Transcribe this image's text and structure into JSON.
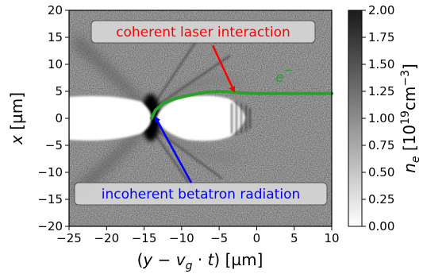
{
  "chart_data": {
    "type": "heatmap",
    "xlabel_parts": [
      "(",
      "y",
      " − ",
      "v",
      "g",
      " · ",
      "t",
      ") [µm]"
    ],
    "ylabel_parts": [
      "x",
      " [µm]"
    ],
    "xlim": [
      -25,
      10
    ],
    "ylim": [
      -20,
      20
    ],
    "x_ticks": [
      -25,
      -20,
      -15,
      -10,
      -5,
      0,
      5,
      10
    ],
    "x_tick_labels": [
      "−25",
      "−20",
      "−15",
      "−10",
      "−5",
      "0",
      "5",
      "10"
    ],
    "y_ticks": [
      -20,
      -15,
      -10,
      -5,
      0,
      5,
      10,
      15,
      20
    ],
    "y_tick_labels": [
      "−20",
      "−15",
      "−10",
      "−5",
      "0",
      "5",
      "10",
      "15",
      "20"
    ],
    "colorbar": {
      "label_parts": [
        "n",
        "e",
        " [10",
        "19",
        "cm",
        "−3",
        "]"
      ],
      "range": [
        0.0,
        2.0
      ],
      "ticks": [
        0.0,
        0.25,
        0.5,
        0.75,
        1.0,
        1.25,
        1.5,
        1.75,
        2.0
      ],
      "tick_labels": [
        "0.00",
        "0.25",
        "0.50",
        "0.75",
        "1.00",
        "1.25",
        "1.50",
        "1.75",
        "2.00"
      ],
      "colormap": "white-to-black"
    },
    "trajectory": {
      "name_parts": [
        "e",
        "−"
      ],
      "color": "#2ca02c",
      "points": [
        [
          -14,
          0
        ],
        [
          -13.5,
          1.5
        ],
        [
          -12.5,
          2.7
        ],
        [
          -11,
          3.6
        ],
        [
          -9,
          4.3
        ],
        [
          -7,
          4.8
        ],
        [
          -5,
          5.0
        ],
        [
          -3.5,
          4.9
        ],
        [
          -2,
          4.7
        ],
        [
          0,
          4.6
        ],
        [
          5,
          4.6
        ],
        [
          10,
          4.6
        ]
      ]
    },
    "annotations": [
      {
        "text": "coherent laser interaction",
        "color": "#ff0000",
        "arrow_target": [
          -3,
          5
        ]
      },
      {
        "text": "incoherent betatron radiation",
        "color": "#0000ff",
        "arrow_target": [
          -13.5,
          0.2
        ]
      }
    ]
  }
}
